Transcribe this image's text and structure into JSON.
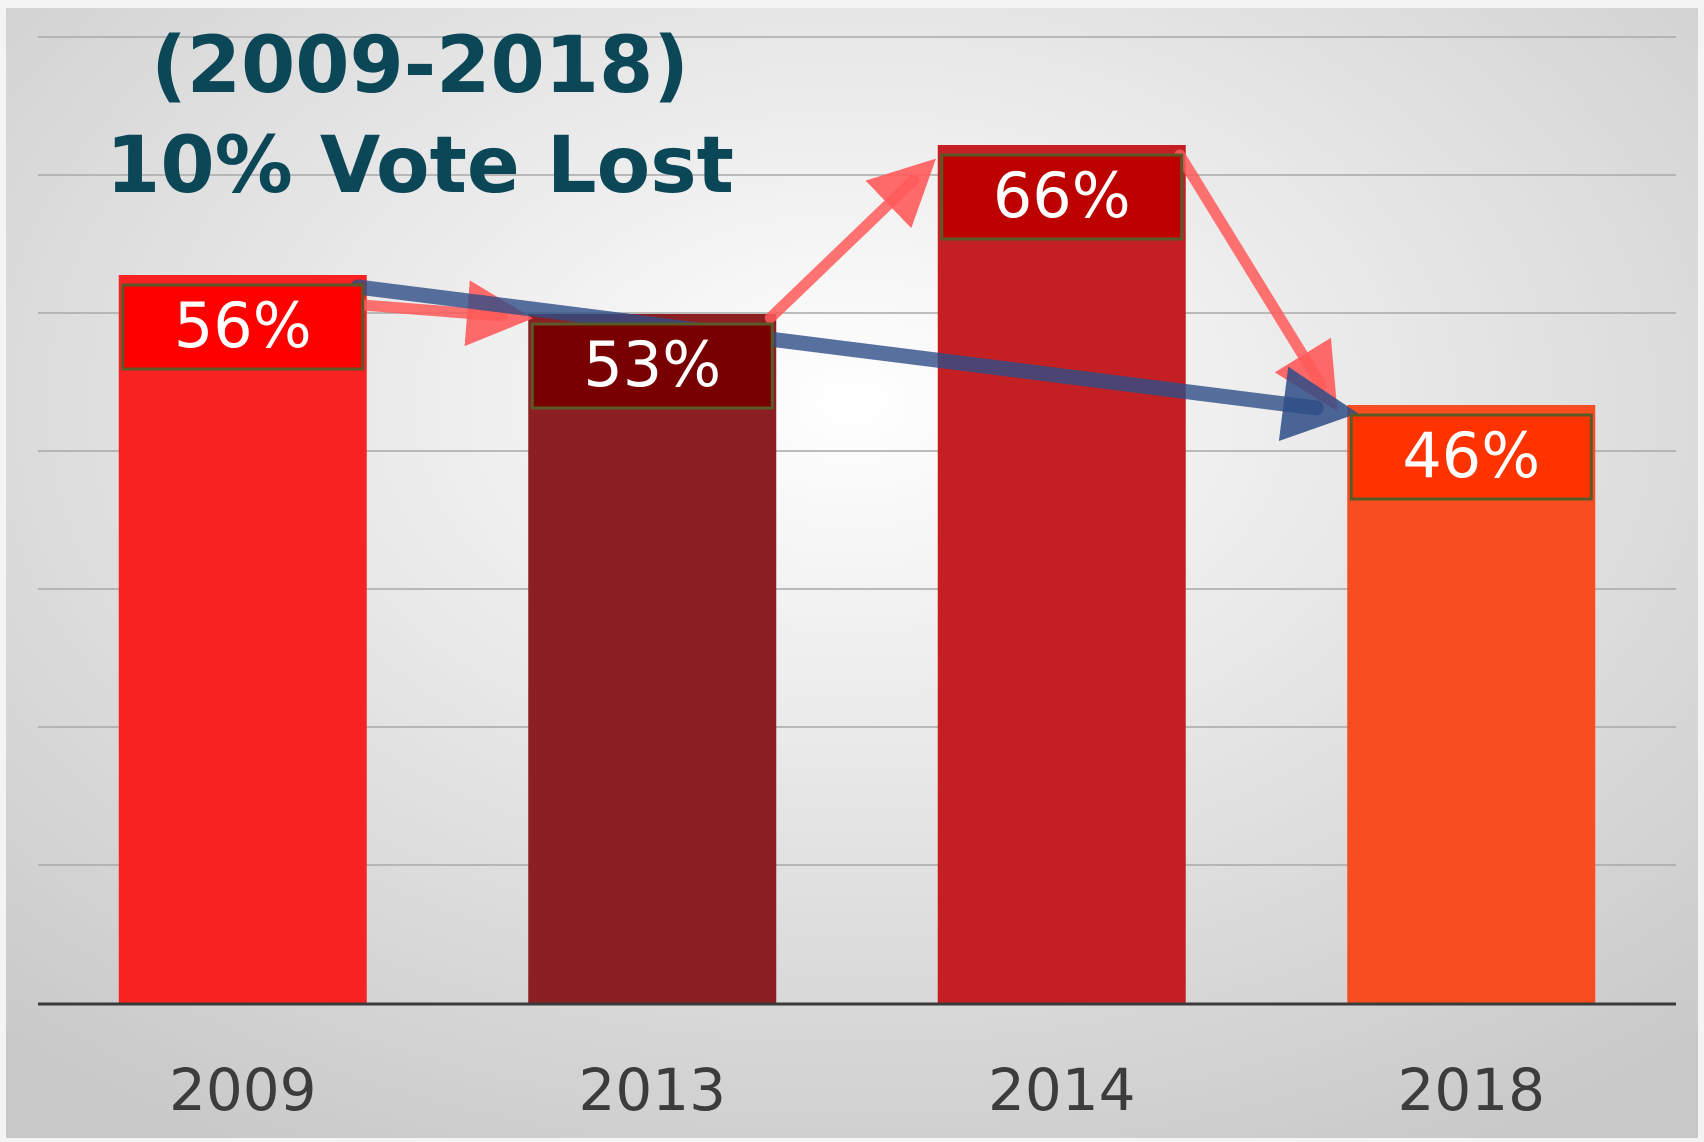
{
  "title": {
    "line1": "(2009-2018)",
    "line2": "10% Vote Lost"
  },
  "chart_data": {
    "type": "bar",
    "categories": [
      "2009",
      "2013",
      "2014",
      "2018"
    ],
    "values": [
      56,
      53,
      66,
      46
    ],
    "data_labels": [
      "56%",
      "53%",
      "66%",
      "46%"
    ],
    "ylim": [
      0,
      70
    ],
    "grid": true,
    "legend": "none",
    "colors": {
      "bars": [
        "#f82222",
        "#8b1f22",
        "#c42023",
        "#f84d20"
      ],
      "label_boxes": [
        "#ff0000",
        "#780000",
        "#bd0000",
        "#ff3300"
      ],
      "label_box_border": "#5a5a28",
      "trend_arrows": "#ff5a5a",
      "overall_arrow": "#2e4d86",
      "title": "#0b4757"
    }
  }
}
